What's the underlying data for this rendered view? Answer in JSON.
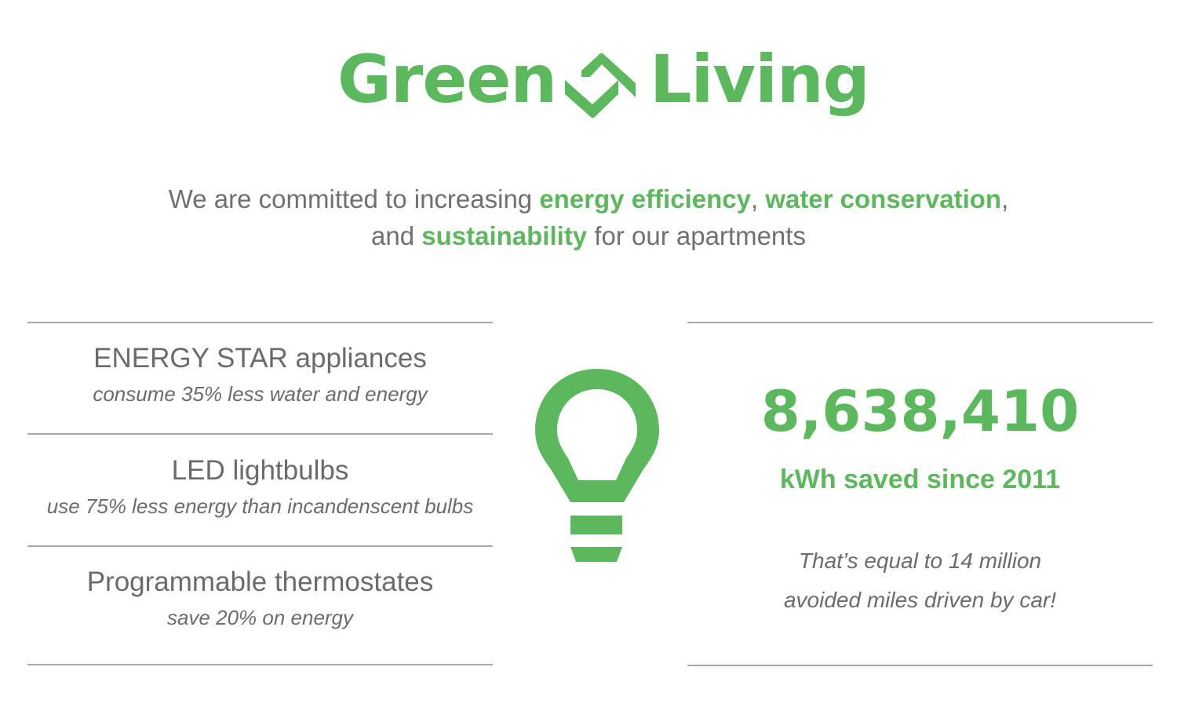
{
  "logo": {
    "word1": "Green",
    "word2": "Living",
    "icon": "up-down-chevron-icon"
  },
  "intro": {
    "line1_before": "We are committed to increasing ",
    "highlight1": "energy efficiency",
    "sep": ", ",
    "highlight2": "water conservation",
    "line1_after": ",",
    "line2_before": "and ",
    "highlight3": "sustainability",
    "line2_after": " for our apartments"
  },
  "features": [
    {
      "title": "ENERGY STAR appliances",
      "subtitle": "consume 35% less water and energy"
    },
    {
      "title": "LED lightbulbs",
      "subtitle": "use 75% less energy than incandenscent bulbs"
    },
    {
      "title": "Programmable thermostates",
      "subtitle": "save 20% on energy"
    }
  ],
  "icon": "lightbulb-icon",
  "stat": {
    "value": "8,638,410",
    "label": "kWh saved since 2011",
    "note_line1": "That’s equal to 14 million",
    "note_line2": "avoided miles driven by car!"
  },
  "colors": {
    "accent": "#5cb85c",
    "text": "#6b6b6b",
    "rule": "#a8a8a8"
  }
}
